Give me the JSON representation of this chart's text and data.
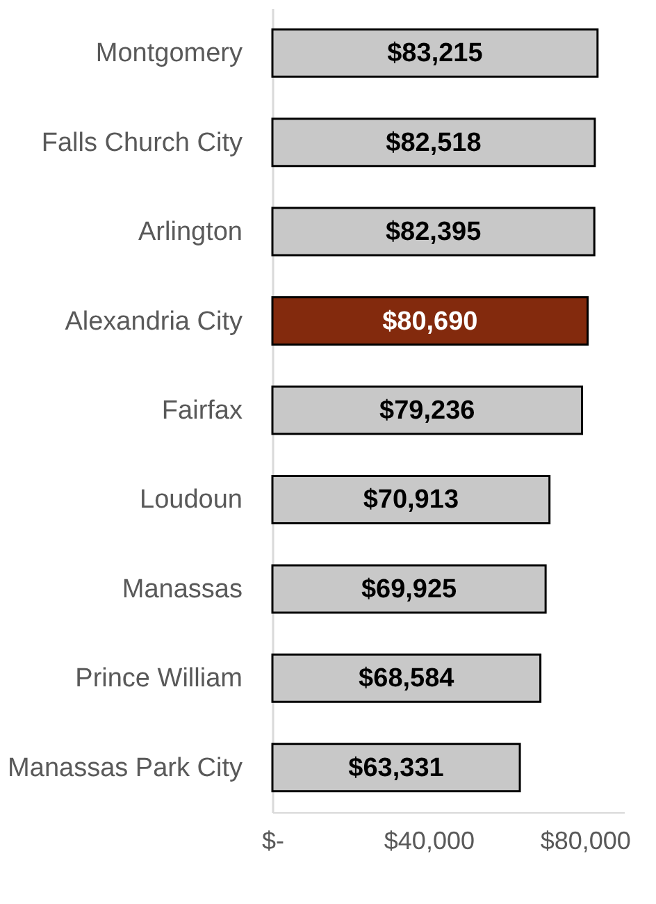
{
  "chart_data": {
    "type": "bar",
    "orientation": "horizontal",
    "categories": [
      "Montgomery",
      "Falls Church City",
      "Arlington",
      "Alexandria City",
      "Fairfax",
      "Loudoun",
      "Manassas",
      "Prince William",
      "Manassas Park City"
    ],
    "values": [
      83215,
      82518,
      82395,
      80690,
      79236,
      70913,
      69925,
      68584,
      63331
    ],
    "colors": [
      "#c8c8c8",
      "#c8c8c8",
      "#c8c8c8",
      "#832a0d",
      "#c8c8c8",
      "#c8c8c8",
      "#c8c8c8",
      "#c8c8c8",
      "#c8c8c8"
    ],
    "value_labels": [
      "$83,215",
      "$82,518",
      "$82,395",
      "$80,690",
      "$79,236",
      "$70,913",
      "$69,925",
      "$68,584",
      "$63,331"
    ],
    "xticks": [
      {
        "value": 0,
        "label": "$-"
      },
      {
        "value": 40000,
        "label": "$40,000"
      },
      {
        "value": 80000,
        "label": "$80,000"
      }
    ],
    "xlim": [
      0,
      90000
    ],
    "grid": false
  }
}
